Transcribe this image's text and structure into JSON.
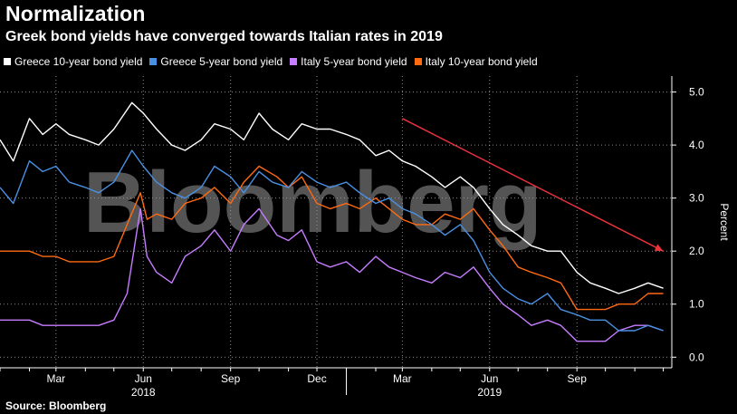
{
  "chart_data": {
    "type": "line",
    "title": "Normalization",
    "subtitle": "Greek bond yields have converged towards Italian rates in 2019",
    "ylabel": "Percent",
    "ylim": [
      -0.2,
      5.3
    ],
    "yticks": [
      "0.0",
      "1.0",
      "2.0",
      "3.0",
      "4.0",
      "5.0"
    ],
    "xlim": [
      "2018-01-01",
      "2019-12-10"
    ],
    "x_tick_labels": [
      {
        "date": "2018-03-01",
        "label": "Mar"
      },
      {
        "date": "2018-06-01",
        "label": "Jun"
      },
      {
        "date": "2018-09-01",
        "label": "Sep"
      },
      {
        "date": "2018-12-01",
        "label": "Dec"
      },
      {
        "date": "2019-03-01",
        "label": "Mar"
      },
      {
        "date": "2019-06-01",
        "label": "Jun"
      },
      {
        "date": "2019-09-01",
        "label": "Sep"
      }
    ],
    "year_labels": [
      {
        "date": "2018-06-01",
        "label": "2018"
      },
      {
        "date": "2019-06-01",
        "label": "2019"
      }
    ],
    "grid": true,
    "legend_position": "top",
    "series": [
      {
        "name": "Greece 10-year bond yield",
        "color": "#ffffff",
        "points": [
          [
            "2018-01-01",
            4.1
          ],
          [
            "2018-01-15",
            3.7
          ],
          [
            "2018-02-01",
            4.5
          ],
          [
            "2018-02-15",
            4.2
          ],
          [
            "2018-03-01",
            4.4
          ],
          [
            "2018-03-15",
            4.2
          ],
          [
            "2018-04-01",
            4.1
          ],
          [
            "2018-04-15",
            4.0
          ],
          [
            "2018-05-01",
            4.3
          ],
          [
            "2018-05-20",
            4.8
          ],
          [
            "2018-06-01",
            4.6
          ],
          [
            "2018-06-15",
            4.3
          ],
          [
            "2018-07-01",
            4.0
          ],
          [
            "2018-07-15",
            3.9
          ],
          [
            "2018-08-01",
            4.1
          ],
          [
            "2018-08-15",
            4.4
          ],
          [
            "2018-09-01",
            4.3
          ],
          [
            "2018-09-15",
            4.1
          ],
          [
            "2018-10-01",
            4.6
          ],
          [
            "2018-10-15",
            4.3
          ],
          [
            "2018-11-01",
            4.1
          ],
          [
            "2018-11-15",
            4.4
          ],
          [
            "2018-12-01",
            4.3
          ],
          [
            "2018-12-15",
            4.3
          ],
          [
            "2019-01-01",
            4.2
          ],
          [
            "2019-01-15",
            4.1
          ],
          [
            "2019-02-01",
            3.8
          ],
          [
            "2019-02-15",
            3.9
          ],
          [
            "2019-03-01",
            3.7
          ],
          [
            "2019-03-15",
            3.6
          ],
          [
            "2019-04-01",
            3.4
          ],
          [
            "2019-04-15",
            3.2
          ],
          [
            "2019-05-01",
            3.4
          ],
          [
            "2019-05-15",
            3.2
          ],
          [
            "2019-06-01",
            2.8
          ],
          [
            "2019-06-15",
            2.5
          ],
          [
            "2019-07-01",
            2.3
          ],
          [
            "2019-07-15",
            2.1
          ],
          [
            "2019-08-01",
            2.0
          ],
          [
            "2019-08-15",
            2.0
          ],
          [
            "2019-09-01",
            1.6
          ],
          [
            "2019-09-15",
            1.4
          ],
          [
            "2019-10-01",
            1.3
          ],
          [
            "2019-10-15",
            1.2
          ],
          [
            "2019-11-01",
            1.3
          ],
          [
            "2019-11-15",
            1.4
          ],
          [
            "2019-12-01",
            1.3
          ]
        ]
      },
      {
        "name": "Greece 5-year bond yield",
        "color": "#4a90e2",
        "points": [
          [
            "2018-01-01",
            3.2
          ],
          [
            "2018-01-15",
            2.9
          ],
          [
            "2018-02-01",
            3.7
          ],
          [
            "2018-02-15",
            3.5
          ],
          [
            "2018-03-01",
            3.6
          ],
          [
            "2018-03-15",
            3.3
          ],
          [
            "2018-04-01",
            3.2
          ],
          [
            "2018-04-15",
            3.1
          ],
          [
            "2018-05-01",
            3.3
          ],
          [
            "2018-05-20",
            3.9
          ],
          [
            "2018-06-01",
            3.6
          ],
          [
            "2018-06-15",
            3.3
          ],
          [
            "2018-07-01",
            3.1
          ],
          [
            "2018-07-15",
            3.0
          ],
          [
            "2018-08-01",
            3.2
          ],
          [
            "2018-08-15",
            3.6
          ],
          [
            "2018-09-01",
            3.4
          ],
          [
            "2018-09-15",
            3.1
          ],
          [
            "2018-10-01",
            3.5
          ],
          [
            "2018-10-15",
            3.3
          ],
          [
            "2018-11-01",
            3.2
          ],
          [
            "2018-11-15",
            3.5
          ],
          [
            "2018-12-01",
            3.3
          ],
          [
            "2018-12-15",
            3.2
          ],
          [
            "2019-01-01",
            3.3
          ],
          [
            "2019-01-15",
            3.1
          ],
          [
            "2019-02-01",
            2.9
          ],
          [
            "2019-02-15",
            3.0
          ],
          [
            "2019-03-01",
            2.8
          ],
          [
            "2019-03-15",
            2.7
          ],
          [
            "2019-04-01",
            2.5
          ],
          [
            "2019-04-15",
            2.3
          ],
          [
            "2019-05-01",
            2.5
          ],
          [
            "2019-05-15",
            2.2
          ],
          [
            "2019-06-01",
            1.6
          ],
          [
            "2019-06-15",
            1.3
          ],
          [
            "2019-07-01",
            1.1
          ],
          [
            "2019-07-15",
            1.0
          ],
          [
            "2019-08-01",
            1.2
          ],
          [
            "2019-08-15",
            0.9
          ],
          [
            "2019-09-01",
            0.8
          ],
          [
            "2019-09-15",
            0.7
          ],
          [
            "2019-10-01",
            0.7
          ],
          [
            "2019-10-15",
            0.5
          ],
          [
            "2019-11-01",
            0.5
          ],
          [
            "2019-11-15",
            0.6
          ],
          [
            "2019-12-01",
            0.5
          ]
        ]
      },
      {
        "name": "Italy 5-year bond yield",
        "color": "#c77dff",
        "points": [
          [
            "2018-01-01",
            0.7
          ],
          [
            "2018-01-15",
            0.7
          ],
          [
            "2018-02-01",
            0.7
          ],
          [
            "2018-02-15",
            0.6
          ],
          [
            "2018-03-01",
            0.6
          ],
          [
            "2018-03-15",
            0.6
          ],
          [
            "2018-04-01",
            0.6
          ],
          [
            "2018-04-15",
            0.6
          ],
          [
            "2018-05-01",
            0.7
          ],
          [
            "2018-05-15",
            1.2
          ],
          [
            "2018-05-29",
            2.8
          ],
          [
            "2018-06-05",
            1.9
          ],
          [
            "2018-06-15",
            1.6
          ],
          [
            "2018-07-01",
            1.4
          ],
          [
            "2018-07-15",
            1.9
          ],
          [
            "2018-08-01",
            2.1
          ],
          [
            "2018-08-15",
            2.4
          ],
          [
            "2018-09-01",
            2.0
          ],
          [
            "2018-09-15",
            2.5
          ],
          [
            "2018-10-01",
            2.8
          ],
          [
            "2018-10-20",
            2.3
          ],
          [
            "2018-11-01",
            2.2
          ],
          [
            "2018-11-15",
            2.4
          ],
          [
            "2018-12-01",
            1.8
          ],
          [
            "2018-12-15",
            1.7
          ],
          [
            "2019-01-01",
            1.8
          ],
          [
            "2019-01-15",
            1.6
          ],
          [
            "2019-02-01",
            1.9
          ],
          [
            "2019-02-15",
            1.7
          ],
          [
            "2019-03-01",
            1.6
          ],
          [
            "2019-03-15",
            1.5
          ],
          [
            "2019-04-01",
            1.4
          ],
          [
            "2019-04-15",
            1.6
          ],
          [
            "2019-05-01",
            1.5
          ],
          [
            "2019-05-15",
            1.7
          ],
          [
            "2019-06-01",
            1.3
          ],
          [
            "2019-06-15",
            1.0
          ],
          [
            "2019-07-01",
            0.8
          ],
          [
            "2019-07-15",
            0.6
          ],
          [
            "2019-08-01",
            0.7
          ],
          [
            "2019-08-15",
            0.6
          ],
          [
            "2019-09-01",
            0.3
          ],
          [
            "2019-09-15",
            0.3
          ],
          [
            "2019-10-01",
            0.3
          ],
          [
            "2019-10-15",
            0.5
          ],
          [
            "2019-11-01",
            0.6
          ],
          [
            "2019-11-15",
            0.6
          ],
          [
            "2019-12-01",
            0.5
          ]
        ]
      },
      {
        "name": "Italy 10-year bond yield",
        "color": "#ff6a13",
        "points": [
          [
            "2018-01-01",
            2.0
          ],
          [
            "2018-01-15",
            2.0
          ],
          [
            "2018-02-01",
            2.0
          ],
          [
            "2018-02-15",
            1.9
          ],
          [
            "2018-03-01",
            1.9
          ],
          [
            "2018-03-15",
            1.8
          ],
          [
            "2018-04-01",
            1.8
          ],
          [
            "2018-04-15",
            1.8
          ],
          [
            "2018-05-01",
            1.9
          ],
          [
            "2018-05-15",
            2.5
          ],
          [
            "2018-05-29",
            3.1
          ],
          [
            "2018-06-05",
            2.6
          ],
          [
            "2018-06-15",
            2.7
          ],
          [
            "2018-07-01",
            2.6
          ],
          [
            "2018-07-15",
            2.9
          ],
          [
            "2018-08-01",
            3.0
          ],
          [
            "2018-08-15",
            3.2
          ],
          [
            "2018-09-01",
            2.9
          ],
          [
            "2018-09-15",
            3.3
          ],
          [
            "2018-10-01",
            3.6
          ],
          [
            "2018-10-20",
            3.4
          ],
          [
            "2018-11-01",
            3.2
          ],
          [
            "2018-11-15",
            3.4
          ],
          [
            "2018-12-01",
            2.9
          ],
          [
            "2018-12-15",
            2.8
          ],
          [
            "2019-01-01",
            2.9
          ],
          [
            "2019-01-15",
            2.8
          ],
          [
            "2019-02-01",
            3.0
          ],
          [
            "2019-02-15",
            2.8
          ],
          [
            "2019-03-01",
            2.6
          ],
          [
            "2019-03-15",
            2.5
          ],
          [
            "2019-04-01",
            2.5
          ],
          [
            "2019-04-15",
            2.7
          ],
          [
            "2019-05-01",
            2.6
          ],
          [
            "2019-05-15",
            2.8
          ],
          [
            "2019-06-01",
            2.4
          ],
          [
            "2019-06-15",
            2.1
          ],
          [
            "2019-07-01",
            1.7
          ],
          [
            "2019-07-15",
            1.6
          ],
          [
            "2019-08-01",
            1.5
          ],
          [
            "2019-08-15",
            1.4
          ],
          [
            "2019-09-01",
            0.9
          ],
          [
            "2019-09-15",
            0.9
          ],
          [
            "2019-10-01",
            0.9
          ],
          [
            "2019-10-15",
            1.0
          ],
          [
            "2019-11-01",
            1.0
          ],
          [
            "2019-11-15",
            1.2
          ],
          [
            "2019-12-01",
            1.2
          ]
        ]
      }
    ],
    "annotation_arrow": {
      "from": [
        "2019-03-01",
        4.5
      ],
      "to": [
        "2019-12-01",
        2.0
      ],
      "color": "#e8323c"
    }
  },
  "legend": [
    {
      "label": "Greece 10-year bond yield",
      "color": "#ffffff"
    },
    {
      "label": "Greece 5-year bond yield",
      "color": "#4a90e2"
    },
    {
      "label": "Italy 5-year bond yield",
      "color": "#c77dff"
    },
    {
      "label": "Italy 10-year bond yield",
      "color": "#ff6a13"
    }
  ],
  "watermark": "Bloomberg",
  "source": "Source: Bloomberg"
}
